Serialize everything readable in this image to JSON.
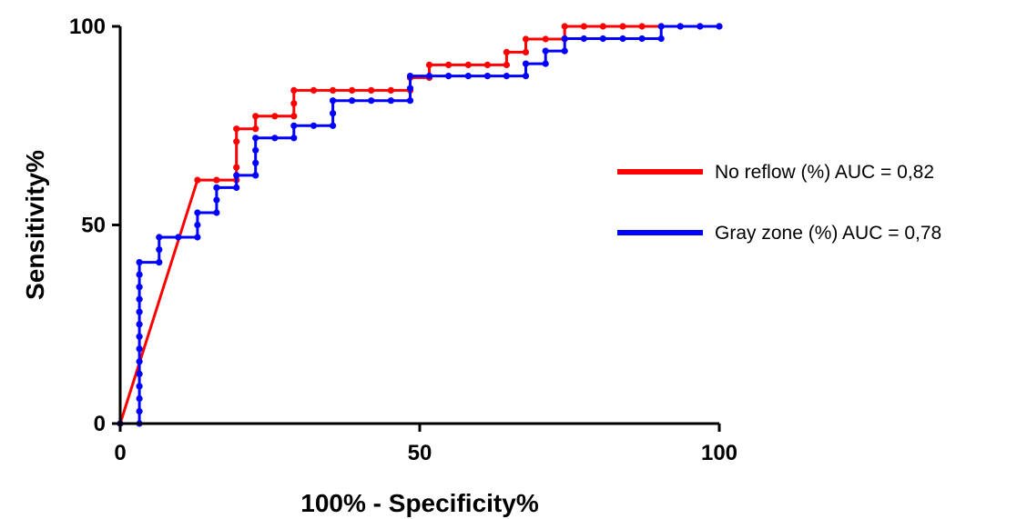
{
  "chart_data": {
    "type": "line",
    "title": "",
    "xlabel": "100% - Specificity%",
    "ylabel": "Sensitivity%",
    "xlim": [
      0,
      100
    ],
    "ylim": [
      0,
      100
    ],
    "x_ticks": [
      0,
      50,
      100
    ],
    "y_ticks": [
      0,
      50,
      100
    ],
    "grid": false,
    "legend_position": "right",
    "series": [
      {
        "name": "No reflow (%) AUC = 0,82",
        "color": "#ff0000",
        "points": [
          [
            0,
            0
          ],
          [
            12.9,
            61.3
          ],
          [
            16.1,
            61.3
          ],
          [
            19.4,
            61.3
          ],
          [
            19.4,
            64.5
          ],
          [
            19.4,
            71.0
          ],
          [
            19.4,
            74.2
          ],
          [
            22.6,
            74.2
          ],
          [
            22.6,
            77.4
          ],
          [
            25.8,
            77.4
          ],
          [
            29.0,
            77.4
          ],
          [
            29.0,
            80.6
          ],
          [
            29.0,
            83.9
          ],
          [
            32.3,
            83.9
          ],
          [
            35.5,
            83.9
          ],
          [
            38.7,
            83.9
          ],
          [
            41.9,
            83.9
          ],
          [
            45.2,
            83.9
          ],
          [
            48.4,
            83.9
          ],
          [
            48.4,
            87.1
          ],
          [
            51.6,
            87.1
          ],
          [
            51.6,
            90.3
          ],
          [
            54.8,
            90.3
          ],
          [
            58.1,
            90.3
          ],
          [
            61.3,
            90.3
          ],
          [
            64.5,
            90.3
          ],
          [
            64.5,
            93.5
          ],
          [
            67.7,
            93.5
          ],
          [
            67.7,
            96.8
          ],
          [
            71.0,
            96.8
          ],
          [
            74.2,
            96.8
          ],
          [
            74.2,
            100
          ],
          [
            77.4,
            100
          ],
          [
            80.6,
            100
          ],
          [
            83.9,
            100
          ],
          [
            87.1,
            100
          ],
          [
            90.3,
            100
          ],
          [
            93.5,
            100
          ],
          [
            96.8,
            100
          ],
          [
            100,
            100
          ]
        ]
      },
      {
        "name": "Gray zone (%) AUC = 0,78",
        "color": "#0000ff",
        "points": [
          [
            0,
            0
          ],
          [
            3.2,
            0
          ],
          [
            3.2,
            3.1
          ],
          [
            3.2,
            6.3
          ],
          [
            3.2,
            9.4
          ],
          [
            3.2,
            12.5
          ],
          [
            3.2,
            15.6
          ],
          [
            3.2,
            18.8
          ],
          [
            3.2,
            21.9
          ],
          [
            3.2,
            25.0
          ],
          [
            3.2,
            28.1
          ],
          [
            3.2,
            31.3
          ],
          [
            3.2,
            34.4
          ],
          [
            3.2,
            37.5
          ],
          [
            3.2,
            40.6
          ],
          [
            6.5,
            40.6
          ],
          [
            6.5,
            43.8
          ],
          [
            6.5,
            46.9
          ],
          [
            9.7,
            46.9
          ],
          [
            12.9,
            46.9
          ],
          [
            12.9,
            50.0
          ],
          [
            12.9,
            53.1
          ],
          [
            16.1,
            53.1
          ],
          [
            16.1,
            56.3
          ],
          [
            16.1,
            59.4
          ],
          [
            19.4,
            59.4
          ],
          [
            19.4,
            62.5
          ],
          [
            22.6,
            62.5
          ],
          [
            22.6,
            65.6
          ],
          [
            22.6,
            68.8
          ],
          [
            22.6,
            71.9
          ],
          [
            25.8,
            71.9
          ],
          [
            29.0,
            71.9
          ],
          [
            29.0,
            75.0
          ],
          [
            32.3,
            75.0
          ],
          [
            35.5,
            75.0
          ],
          [
            35.5,
            78.1
          ],
          [
            35.5,
            81.3
          ],
          [
            38.7,
            81.3
          ],
          [
            41.9,
            81.3
          ],
          [
            45.2,
            81.3
          ],
          [
            48.4,
            81.3
          ],
          [
            48.4,
            84.4
          ],
          [
            48.4,
            87.5
          ],
          [
            51.6,
            87.5
          ],
          [
            54.8,
            87.5
          ],
          [
            58.1,
            87.5
          ],
          [
            61.3,
            87.5
          ],
          [
            64.5,
            87.5
          ],
          [
            67.7,
            87.5
          ],
          [
            67.7,
            90.6
          ],
          [
            71.0,
            90.6
          ],
          [
            71.0,
            93.8
          ],
          [
            74.2,
            93.8
          ],
          [
            74.2,
            96.9
          ],
          [
            77.4,
            96.9
          ],
          [
            80.6,
            96.9
          ],
          [
            83.9,
            96.9
          ],
          [
            87.1,
            96.9
          ],
          [
            90.3,
            96.9
          ],
          [
            90.3,
            100
          ],
          [
            93.5,
            100
          ],
          [
            96.8,
            100
          ],
          [
            100,
            100
          ]
        ]
      }
    ]
  }
}
